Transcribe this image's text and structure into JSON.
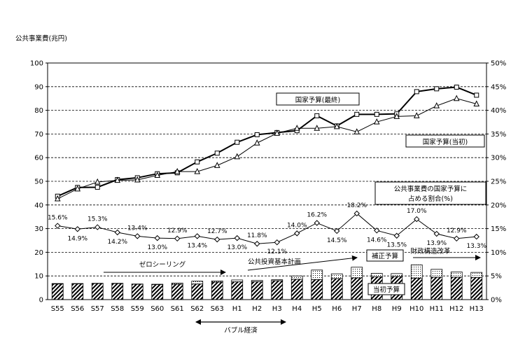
{
  "chart_data": {
    "type": "bar+line",
    "ylabel": "公共事業費(兆円)",
    "ylim": [
      0,
      100
    ],
    "y2lim": [
      0,
      50
    ],
    "y_ticks": [
      "0",
      "10",
      "20",
      "30",
      "40",
      "50",
      "60",
      "70",
      "80",
      "90",
      "100"
    ],
    "y2_ticks": [
      "0%",
      "5%",
      "10%",
      "15%",
      "20%",
      "25%",
      "30%",
      "35%",
      "40%",
      "45%",
      "50%"
    ],
    "categories": [
      "S55",
      "S56",
      "S57",
      "S58",
      "S59",
      "S60",
      "S61",
      "S62",
      "S63",
      "H1",
      "H2",
      "H3",
      "H4",
      "H5",
      "H6",
      "H7",
      "H8",
      "H9",
      "H10",
      "H11",
      "H12",
      "H13"
    ],
    "series": [
      {
        "name": "国家予算(最終)",
        "values": [
          43.7,
          47.4,
          47.5,
          50.7,
          51.5,
          53.2,
          53.6,
          58.2,
          61.9,
          66.5,
          69.7,
          70.6,
          71.4,
          77.7,
          73.4,
          78.3,
          78.3,
          78.5,
          87.9,
          89.1,
          89.8,
          86.4
        ]
      },
      {
        "name": "国家予算(当初)",
        "values": [
          42.6,
          46.8,
          49.7,
          50.4,
          50.6,
          52.5,
          54.1,
          54.1,
          56.7,
          60.4,
          66.2,
          70.3,
          72.4,
          72.4,
          73.1,
          70.9,
          75.1,
          77.4,
          77.7,
          81.9,
          85.0,
          82.7
        ]
      },
      {
        "name": "公共事業費の国家予算に占める割合(%)",
        "values": [
          15.6,
          14.9,
          15.3,
          14.2,
          13.4,
          13.0,
          12.9,
          13.4,
          12.7,
          13.0,
          11.8,
          12.1,
          14.0,
          16.2,
          14.5,
          18.2,
          14.6,
          13.5,
          17.0,
          13.9,
          12.9,
          13.3
        ]
      },
      {
        "name": "当初予算",
        "values": [
          6.6,
          6.7,
          6.8,
          6.8,
          6.5,
          6.4,
          6.5,
          6.6,
          7.4,
          7.5,
          7.6,
          8.0,
          8.6,
          8.5,
          8.9,
          9.2,
          9.7,
          9.8,
          9.1,
          9.5,
          9.5,
          9.4
        ]
      },
      {
        "name": "補正予算",
        "values": [
          0.2,
          0.1,
          0.1,
          0.1,
          0.1,
          0.1,
          0.5,
          1.2,
          0.5,
          0.8,
          0.5,
          0.4,
          1.4,
          4.0,
          2.0,
          4.5,
          1.4,
          1.2,
          5.6,
          3.3,
          2.2,
          2.1
        ]
      }
    ],
    "pct_labels": [
      "15.6%",
      "14.9%",
      "15.3%",
      "14.2%",
      "13.4%",
      "13.0%",
      "12.9%",
      "13.4%",
      "12.7%",
      "13.0%",
      "11.8%",
      "12.1%",
      "14.0%",
      "16.2%",
      "14.5%",
      "18.2%",
      "14.6%",
      "13.5%",
      "17.0%",
      "13.9%",
      "12.9%",
      "13.3%"
    ],
    "annotations": {
      "final_budget": "国家予算(最終)",
      "initial_budget": "国家予算(当初)",
      "ratio_line1": "公共事業費の国家予算に",
      "ratio_line2": "占める割合(%)",
      "zero_ceiling": "ゼロシーリング",
      "public_plan": "公共投資基本計画",
      "supplementary": "補正予算",
      "fiscal_reform": "財政構造改革",
      "initial": "当初予算",
      "bubble": "バブル経済"
    },
    "grid": true
  }
}
